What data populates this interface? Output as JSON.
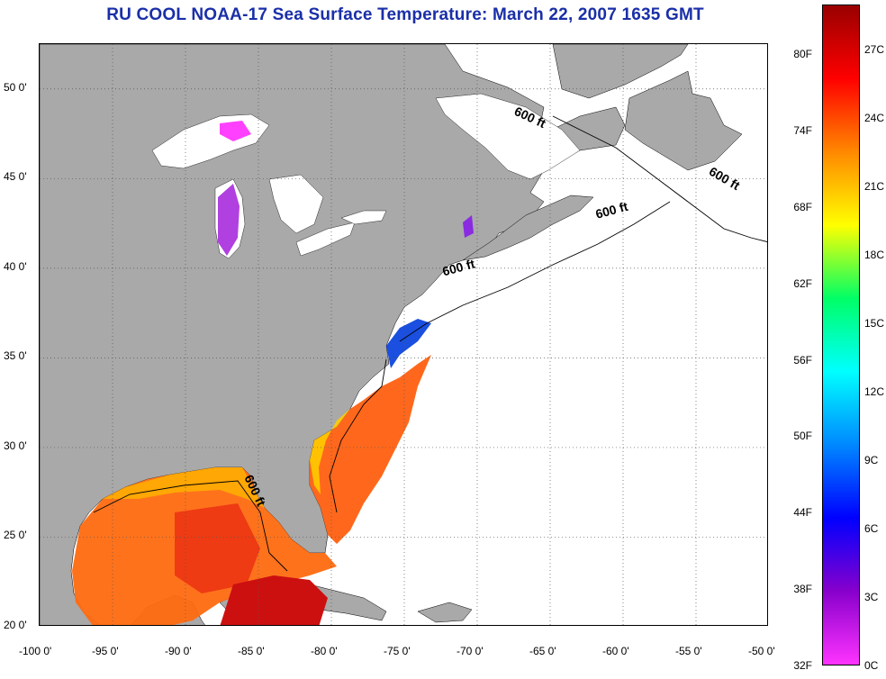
{
  "title": "RU COOL  NOAA-17  Sea Surface Temperature:  March 22, 2007 1635 GMT",
  "map": {
    "lon_range": [
      -100,
      -50
    ],
    "lat_range": [
      20,
      52.5
    ],
    "lat_ticks": [
      {
        "value": 50,
        "label": "50 0'"
      },
      {
        "value": 45,
        "label": "45 0'"
      },
      {
        "value": 40,
        "label": "40 0'"
      },
      {
        "value": 35,
        "label": "35 0'"
      },
      {
        "value": 30,
        "label": "30 0'"
      },
      {
        "value": 25,
        "label": "25 0'"
      },
      {
        "value": 20,
        "label": "20 0'"
      }
    ],
    "lon_ticks": [
      {
        "value": -100,
        "label": "-100 0'"
      },
      {
        "value": -95,
        "label": "-95 0'"
      },
      {
        "value": -90,
        "label": "-90 0'"
      },
      {
        "value": -85,
        "label": "-85 0'"
      },
      {
        "value": -80,
        "label": "-80 0'"
      },
      {
        "value": -75,
        "label": "-75 0'"
      },
      {
        "value": -70,
        "label": "-70 0'"
      },
      {
        "value": -65,
        "label": "-65 0'"
      },
      {
        "value": -60,
        "label": "-60 0'"
      },
      {
        "value": -55,
        "label": "-55 0'"
      },
      {
        "value": -50,
        "label": "-50 0'"
      }
    ],
    "contour_labels": [
      {
        "text": "600 ft",
        "lon": -66.5,
        "lat": 48.2,
        "angle": 25
      },
      {
        "text": "600 ft",
        "lon": -53.2,
        "lat": 44.8,
        "angle": 30
      },
      {
        "text": "600 ft",
        "lon": -60.7,
        "lat": 43.0,
        "angle": -15
      },
      {
        "text": "600 ft",
        "lon": -71.2,
        "lat": 39.8,
        "angle": -15
      },
      {
        "text": "600 ft",
        "lon": -85.5,
        "lat": 27.5,
        "angle": 65
      }
    ],
    "colors": {
      "land": "#a9a9a9",
      "ocean": "#ffffff",
      "grid": "#555555"
    }
  },
  "colorbar": {
    "fahrenheit": [
      "80F",
      "74F",
      "68F",
      "62F",
      "56F",
      "50F",
      "44F",
      "38F",
      "32F"
    ],
    "celsius": [
      "27C",
      "24C",
      "21C",
      "18C",
      "15C",
      "12C",
      "9C",
      "6C",
      "3C",
      "0C"
    ],
    "gradient": [
      "#990000",
      "#ff0000",
      "#ff8800",
      "#ffff00",
      "#00ff66",
      "#00ffff",
      "#0088ff",
      "#0000ff",
      "#8800cc",
      "#ff33ff"
    ]
  }
}
